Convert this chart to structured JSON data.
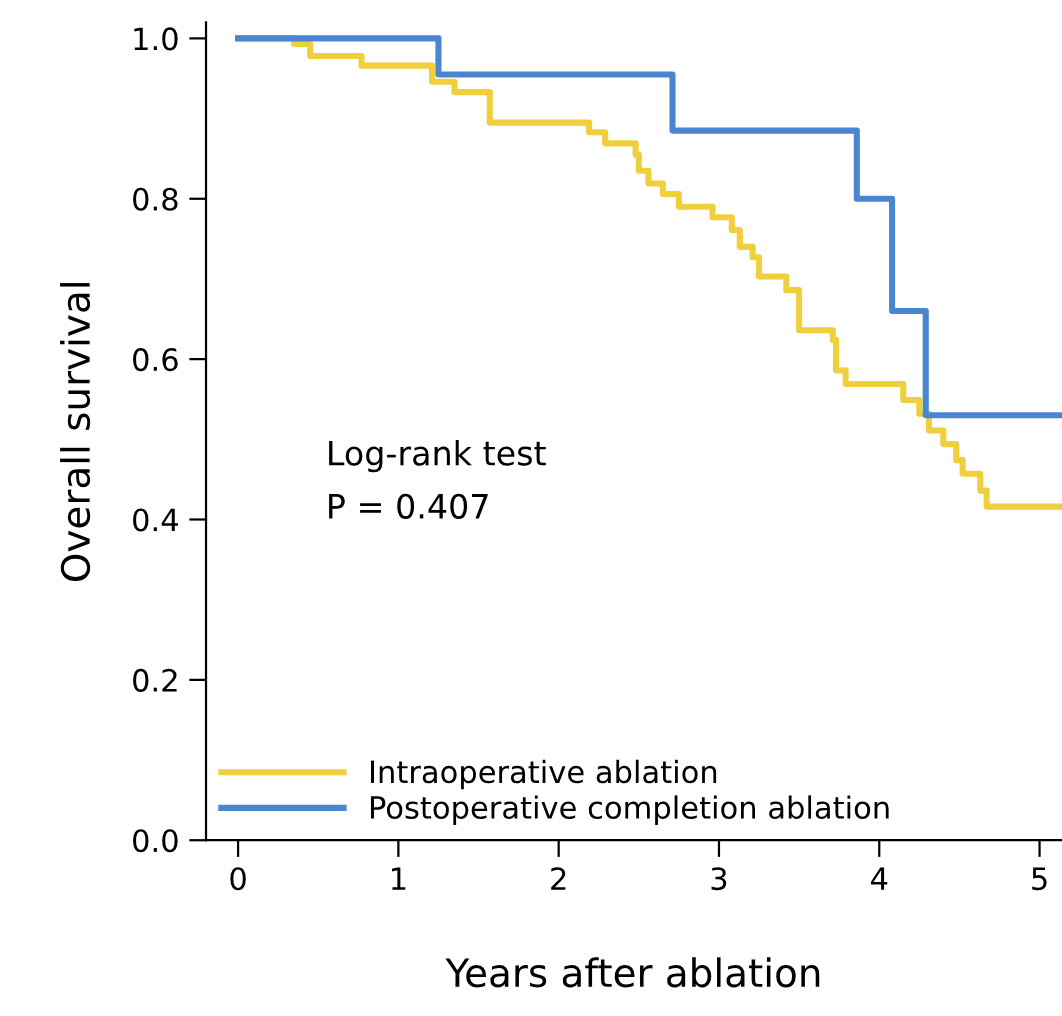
{
  "chart_data": {
    "type": "step",
    "xlabel": "Years after ablation",
    "ylabel": "Overall survival",
    "xlim": [
      -0.2,
      5.14
    ],
    "ylim": [
      0,
      1.02
    ],
    "xticks": [
      0,
      1,
      2,
      3,
      4,
      5
    ],
    "yticks": [
      {
        "value": 0,
        "label": "0.0"
      },
      {
        "value": 0.2,
        "label": "0.2"
      },
      {
        "value": 0.4,
        "label": "0.4"
      },
      {
        "value": 0.6,
        "label": "0.6"
      },
      {
        "value": 0.8,
        "label": "0.8"
      },
      {
        "value": 1,
        "label": "1.0"
      }
    ],
    "grid": false,
    "legend": "bottom left",
    "marker": "none",
    "line_style": "solid",
    "annotations": [
      "Log-rank test",
      "P = 0.407"
    ],
    "series": [
      {
        "name": "Intraoperative ablation",
        "color": "#f0cf3c",
        "x": [
          0,
          0.35,
          0.45,
          0.77,
          1.21,
          1.35,
          1.57,
          2.19,
          2.29,
          2.48,
          2.5,
          2.56,
          2.65,
          2.75,
          2.96,
          3.08,
          3.13,
          3.21,
          3.25,
          3.42,
          3.5,
          3.71,
          3.73,
          3.79,
          4.15,
          4.25,
          4.31,
          4.4,
          4.48,
          4.52,
          4.63,
          4.67,
          5.14
        ],
        "values": [
          1.0,
          0.993,
          0.978,
          0.966,
          0.946,
          0.933,
          0.895,
          0.883,
          0.869,
          0.855,
          0.835,
          0.819,
          0.806,
          0.79,
          0.777,
          0.761,
          0.74,
          0.727,
          0.703,
          0.686,
          0.636,
          0.624,
          0.586,
          0.569,
          0.549,
          0.532,
          0.511,
          0.494,
          0.474,
          0.457,
          0.436,
          0.416,
          0.416
        ]
      },
      {
        "name": "Postoperative completion ablation",
        "color": "#4a86d0",
        "x": [
          0,
          1.25,
          2.71,
          3.86,
          4.08,
          4.29,
          5.14
        ],
        "values": [
          1.0,
          0.955,
          0.885,
          0.8,
          0.66,
          0.53,
          0.53
        ]
      }
    ]
  }
}
